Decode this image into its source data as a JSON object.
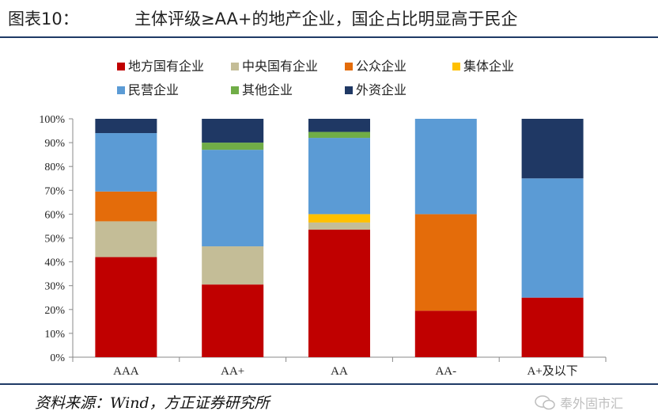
{
  "header": {
    "figure_label": "图表10：",
    "title": "主体评级≥AA+的地产企业，国企占比明显高于民企"
  },
  "source": "资料来源：Wind，方正证券研究所",
  "watermark": "奉外固市汇",
  "chart_data": {
    "type": "bar",
    "stacked": true,
    "categories": [
      "AAA",
      "AA+",
      "AA",
      "AA-",
      "A+及以下"
    ],
    "ylim": [
      0,
      100
    ],
    "y_ticks": [
      "0%",
      "10%",
      "20%",
      "30%",
      "40%",
      "50%",
      "60%",
      "70%",
      "80%",
      "90%",
      "100%"
    ],
    "legend_position": "top",
    "grid": false,
    "series": [
      {
        "name": "地方国有企业",
        "color": "#c00000",
        "values": [
          42,
          30.5,
          53.5,
          19.5,
          25
        ]
      },
      {
        "name": "中央国有企业",
        "color": "#c4bd97",
        "values": [
          15,
          16,
          3,
          0,
          0
        ]
      },
      {
        "name": "公众企业",
        "color": "#e46c0a",
        "values": [
          12.5,
          0,
          0,
          40.5,
          0
        ]
      },
      {
        "name": "集体企业",
        "color": "#ffc000",
        "values": [
          0,
          0,
          3.5,
          0,
          0
        ]
      },
      {
        "name": "民营企业",
        "color": "#5b9bd5",
        "values": [
          24.5,
          40.5,
          32,
          40,
          50
        ]
      },
      {
        "name": "其他企业",
        "color": "#70ad47",
        "values": [
          0,
          3,
          2.5,
          0,
          0
        ]
      },
      {
        "name": "外资企业",
        "color": "#1f3864",
        "values": [
          6,
          10,
          5.5,
          0,
          25
        ]
      }
    ]
  }
}
